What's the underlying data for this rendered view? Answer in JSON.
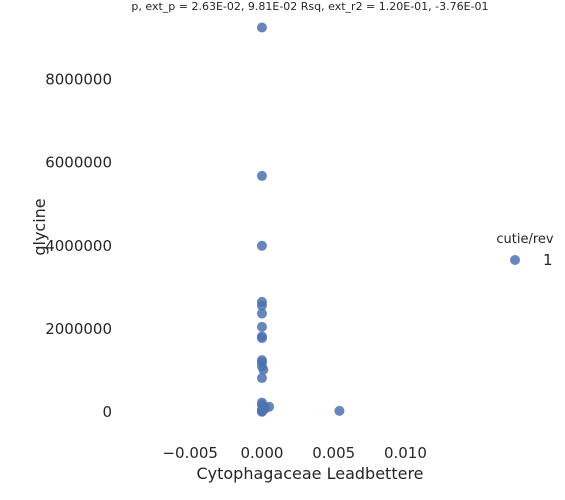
{
  "chart_data": {
    "type": "scatter",
    "title": "p, ext_p = 2.63E-02, 9.81E-02 Rsq, ext_r2 = 1.20E-01, -3.76E-01",
    "xlabel": "Cytophagaceae Leadbettere",
    "ylabel": "glycine",
    "xlim": [
      -0.0085,
      0.0145
    ],
    "ylim": [
      -550000,
      9550000
    ],
    "x_ticks": [
      -0.005,
      0.0,
      0.005,
      0.01
    ],
    "x_tick_labels": [
      "−0.005",
      "0.000",
      "0.005",
      "0.010"
    ],
    "y_ticks": [
      0,
      2000000,
      4000000,
      6000000,
      8000000
    ],
    "y_tick_labels": [
      "0",
      "2000000",
      "4000000",
      "6000000",
      "8000000"
    ],
    "grid": false,
    "legend": {
      "title": "cutie/rev",
      "placement": "center-right",
      "entries": [
        "1"
      ]
    },
    "series": [
      {
        "name": "1",
        "color": "#4c72b0",
        "x": [
          0,
          0,
          0,
          0,
          0,
          0,
          0,
          0,
          0,
          0,
          0,
          0,
          0.0001,
          0,
          0,
          0,
          0.0002,
          0.0002,
          0,
          0,
          0,
          0,
          0,
          0.0005,
          0.0054
        ],
        "y": [
          9250000,
          5680000,
          4000000,
          2650000,
          2560000,
          2370000,
          2050000,
          1820000,
          1780000,
          1250000,
          1200000,
          1100000,
          1020000,
          820000,
          230000,
          180000,
          120000,
          80000,
          60000,
          40000,
          30000,
          20000,
          10000,
          130000,
          30000
        ]
      }
    ]
  }
}
